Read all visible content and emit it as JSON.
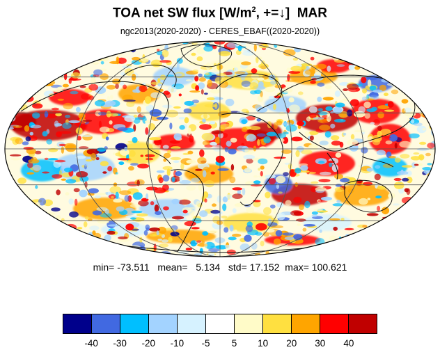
{
  "title": {
    "main": "TOA net SW flux [W/m",
    "sup": "2",
    "rest": ", +=↓]",
    "month": "MAR"
  },
  "subtitle": "ngc2013(2020-2020) - CERES_EBAF((2020-2020))",
  "stats": {
    "min_label": "min=",
    "min": "-73.511",
    "mean_label": "mean=",
    "mean": "5.134",
    "std_label": "std=",
    "std": "17.152",
    "max_label": "max=",
    "max": "100.621"
  },
  "colorbar": {
    "colors": [
      "#00008b",
      "#4169e1",
      "#00bfff",
      "#a3d3ff",
      "#d6f2ff",
      "#ffffff",
      "#fffbc8",
      "#ffe040",
      "#ffa500",
      "#ff0000",
      "#c00000"
    ],
    "labels": [
      "-40",
      "-30",
      "-20",
      "-10",
      "-5",
      "5",
      "10",
      "20",
      "30",
      "40"
    ]
  }
}
